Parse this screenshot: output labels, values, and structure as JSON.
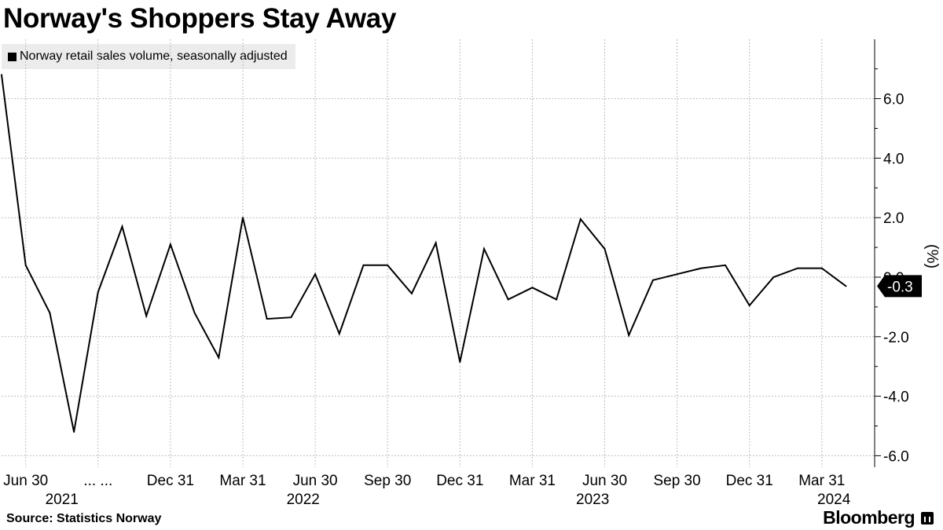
{
  "title": "Norway's Shoppers Stay Away",
  "source": "Source: Statistics Norway",
  "brand": "Bloomberg",
  "colors": {
    "line": "#000000",
    "grid": "#bdbdbd",
    "badge_bg": "#000000",
    "badge_fg": "#ffffff"
  },
  "chart_data": {
    "type": "line",
    "title": "Norway's Shoppers Stay Away",
    "ylabel": "(%)",
    "xlabel": "",
    "ylim": [
      -6.5,
      8
    ],
    "yticks": [
      6.0,
      4.0,
      2.0,
      0.0,
      -2.0,
      -4.0,
      -6.0
    ],
    "ytick_labels": [
      "6.0",
      "4.0",
      "2.0",
      "0.0",
      "-2.0",
      "-4.0",
      "-6.0"
    ],
    "grid": true,
    "legend_position": "top-left",
    "last_value_label": "-0.3",
    "x_month_labels": [
      {
        "label": "Jun 30",
        "index": 1
      },
      {
        "label": "... ...",
        "index": 4
      },
      {
        "label": "Dec 31",
        "index": 7
      },
      {
        "label": "Mar 31",
        "index": 10
      },
      {
        "label": "Jun 30",
        "index": 13
      },
      {
        "label": "Sep 30",
        "index": 16
      },
      {
        "label": "Dec 31",
        "index": 19
      },
      {
        "label": "Mar 31",
        "index": 22
      },
      {
        "label": "Jun 30",
        "index": 25
      },
      {
        "label": "Sep 30",
        "index": 28
      },
      {
        "label": "Dec 31",
        "index": 31
      },
      {
        "label": "Mar 31",
        "index": 34
      }
    ],
    "x_year_labels": [
      {
        "label": "2021",
        "index": 2.5
      },
      {
        "label": "2022",
        "index": 12.5
      },
      {
        "label": "2023",
        "index": 24.5
      },
      {
        "label": "2024",
        "index": 34.5
      }
    ],
    "series": [
      {
        "name": "Norway retail sales volume, seasonally adjusted",
        "values": [
          6.8,
          0.4,
          -1.2,
          -5.2,
          -0.5,
          1.7,
          -1.3,
          1.1,
          -1.2,
          -2.7,
          2.0,
          -1.4,
          -1.35,
          0.1,
          -1.9,
          0.4,
          0.4,
          -0.55,
          1.15,
          -2.85,
          0.95,
          -0.75,
          -0.35,
          -0.75,
          1.95,
          0.95,
          -1.95,
          -0.1,
          0.1,
          0.3,
          0.4,
          -0.95,
          0.0,
          0.3,
          0.3,
          -0.3
        ]
      }
    ]
  }
}
